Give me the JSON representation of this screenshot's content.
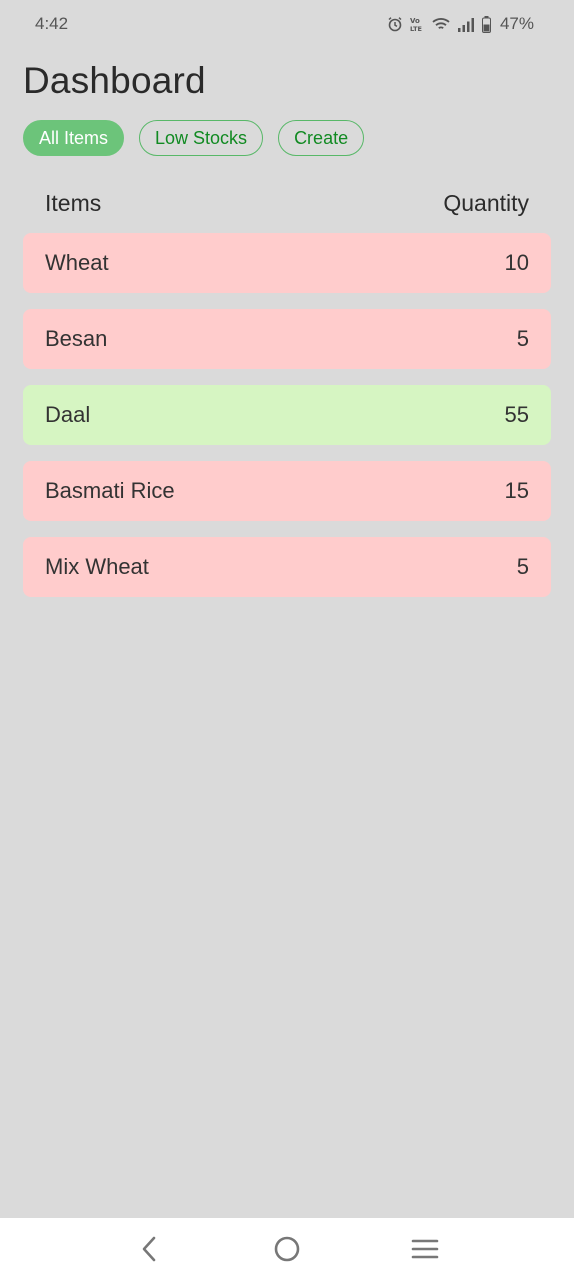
{
  "status_bar": {
    "time": "4:42",
    "battery": "47%",
    "icons": [
      "alarm-icon",
      "volte-icon",
      "wifi-icon",
      "signal-icon",
      "battery-icon"
    ]
  },
  "header": {
    "title": "Dashboard"
  },
  "filters": [
    {
      "label": "All Items",
      "active": true
    },
    {
      "label": "Low Stocks",
      "active": false
    },
    {
      "label": "Create",
      "active": false
    }
  ],
  "table": {
    "columns": {
      "items": "Items",
      "quantity": "Quantity"
    },
    "rows": [
      {
        "name": "Wheat",
        "quantity": "10",
        "status": "low"
      },
      {
        "name": "Besan",
        "quantity": "5",
        "status": "low"
      },
      {
        "name": "Daal",
        "quantity": "55",
        "status": "ok"
      },
      {
        "name": "Basmati Rice",
        "quantity": "15",
        "status": "low"
      },
      {
        "name": "Mix Wheat",
        "quantity": "5",
        "status": "low"
      }
    ]
  },
  "colors": {
    "low_stock_bg": "#ffcccc",
    "ok_stock_bg": "#d6f5c2",
    "accent": "#6cc47a",
    "accent_text": "#118a22"
  },
  "nav": [
    "back-icon",
    "home-icon",
    "recents-icon"
  ]
}
